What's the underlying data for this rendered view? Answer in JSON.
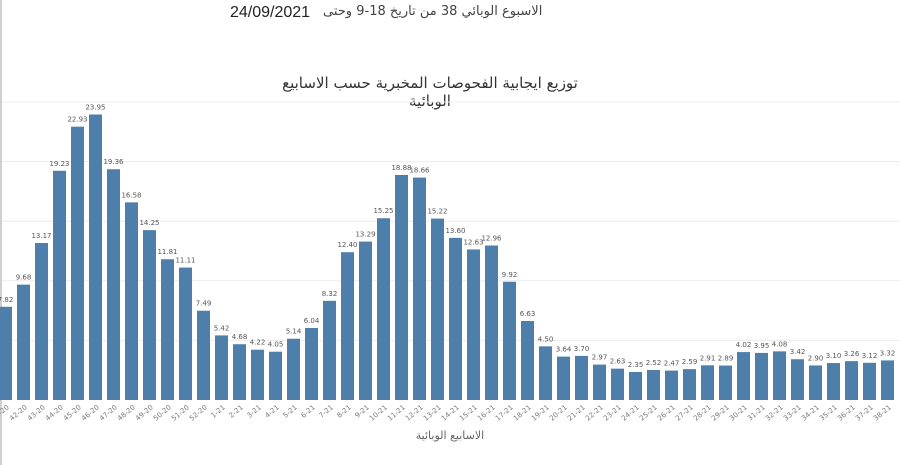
{
  "header": {
    "date": "24/09/2021",
    "week_text": "الاسبوع الوبائي 38 من تاريخ 18-9 وحتى"
  },
  "chart_data": {
    "type": "bar",
    "title": "توزيع ايجابية الفحوصات المخبرية حسب الاسابيع الوبائية",
    "xlabel": "الاسابيع الوبائية",
    "ylabel": "",
    "ylim": [
      0,
      25
    ],
    "grid": true,
    "bar_color": "#4e7fab",
    "categories": [
      "41-20",
      "42-20",
      "43-20",
      "44-20",
      "45-20",
      "46-20",
      "47-20",
      "48-20",
      "49-20",
      "50-20",
      "51-20",
      "52-20",
      "1-21",
      "2-21",
      "3-21",
      "4-21",
      "5-21",
      "6-21",
      "7-21",
      "8-21",
      "9-21",
      "10-21",
      "11-21",
      "12-21",
      "13-21",
      "14-21",
      "15-21",
      "16-21",
      "17-21",
      "18-21",
      "19-21",
      "20-21",
      "21-21",
      "22-21",
      "23-21",
      "24-21",
      "25-21",
      "26-21",
      "27-21",
      "28-21",
      "29-21",
      "30-21",
      "31-21",
      "32-21",
      "33-21",
      "34-21",
      "35-21",
      "36-21",
      "37-21",
      "38-21"
    ],
    "values": [
      7.82,
      9.68,
      13.17,
      19.23,
      22.93,
      23.95,
      19.36,
      16.58,
      14.25,
      11.81,
      11.11,
      7.49,
      5.42,
      4.68,
      4.22,
      4.05,
      5.14,
      6.04,
      8.32,
      12.4,
      13.29,
      15.25,
      18.88,
      18.66,
      15.22,
      13.6,
      12.63,
      12.96,
      9.92,
      6.63,
      4.5,
      3.64,
      3.7,
      2.97,
      2.63,
      2.35,
      2.52,
      2.47,
      2.59,
      2.91,
      2.89,
      4.02,
      3.95,
      4.08,
      3.42,
      2.9,
      3.1,
      3.26,
      3.12,
      3.32
    ]
  }
}
